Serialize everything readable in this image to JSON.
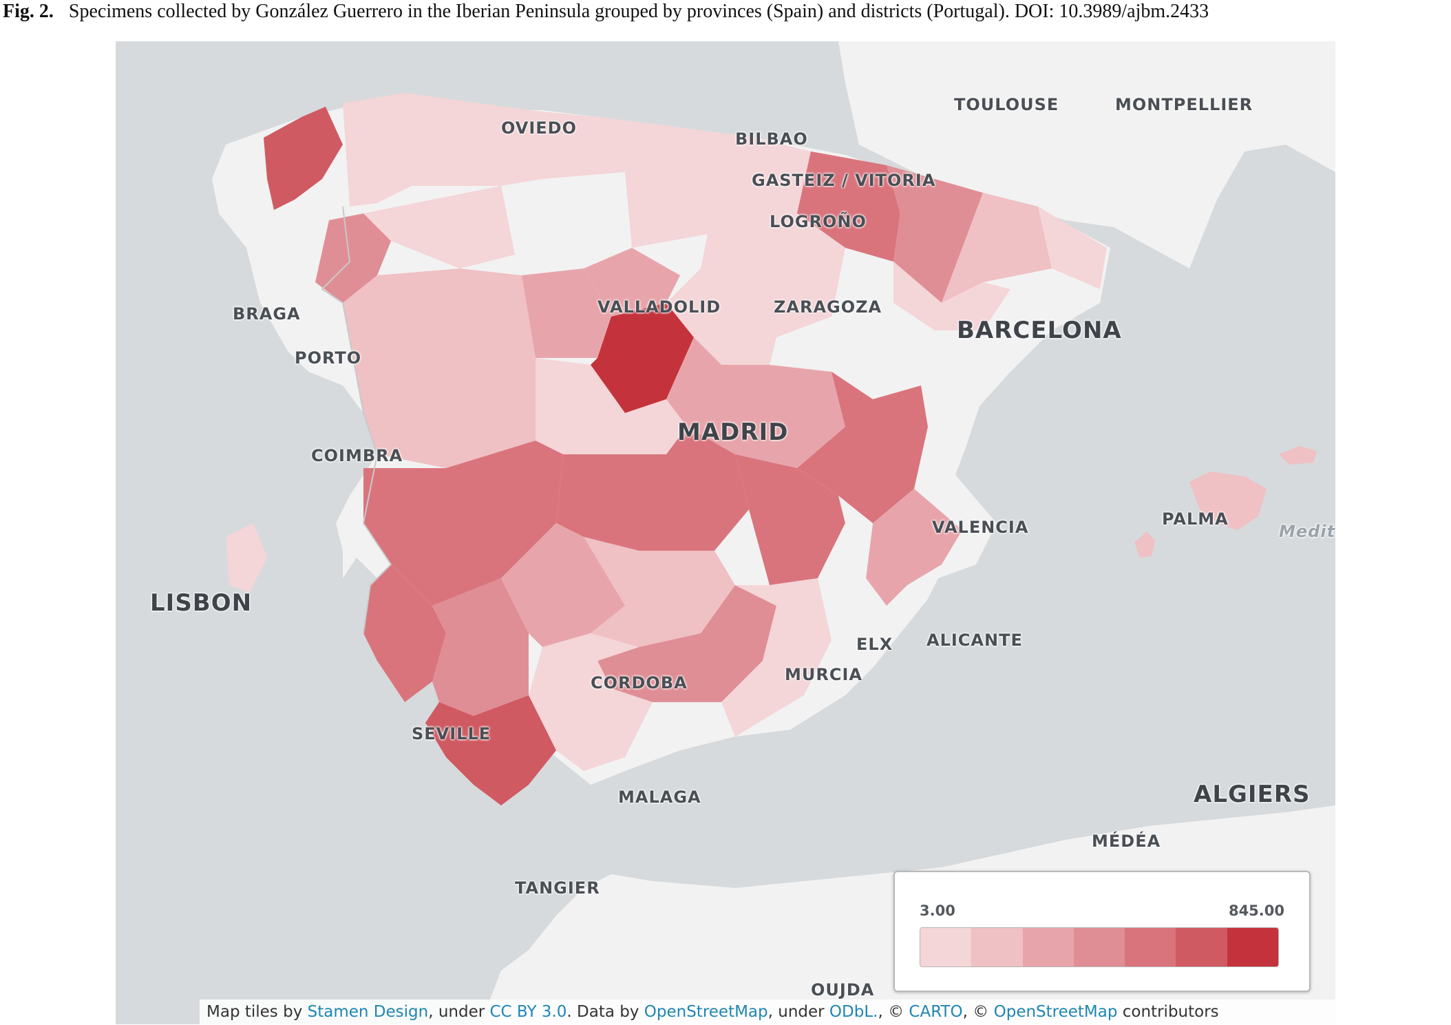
{
  "caption": {
    "label": "Fig. 2.",
    "text": "Specimens collected by González Guerrero in the Iberian Peninsula grouped by provinces (Spain) and districts (Portugal). DOI: 10.3989/ajbm.2433"
  },
  "map": {
    "cities": [
      {
        "id": "oviedo",
        "name": "OVIEDO"
      },
      {
        "id": "bilbao",
        "name": "BILBAO"
      },
      {
        "id": "toulouse",
        "name": "TOULOUSE"
      },
      {
        "id": "montpellier",
        "name": "MONTPELLIER"
      },
      {
        "id": "vitoria",
        "name": "GASTEIZ / VITORIA"
      },
      {
        "id": "logrono",
        "name": "LOGROÑO"
      },
      {
        "id": "braga",
        "name": "BRAGA"
      },
      {
        "id": "valladolid",
        "name": "VALLADOLID"
      },
      {
        "id": "zaragoza",
        "name": "ZARAGOZA"
      },
      {
        "id": "barcelona",
        "name": "BARCELONA"
      },
      {
        "id": "porto",
        "name": "PORTO"
      },
      {
        "id": "madrid",
        "name": "MADRID"
      },
      {
        "id": "coimbra",
        "name": "COIMBRA"
      },
      {
        "id": "valencia",
        "name": "VALENCIA"
      },
      {
        "id": "palma",
        "name": "PALMA"
      },
      {
        "id": "medit",
        "name": "Medit"
      },
      {
        "id": "lisbon",
        "name": "LISBON"
      },
      {
        "id": "elx",
        "name": "ELX"
      },
      {
        "id": "alicante",
        "name": "ALICANTE"
      },
      {
        "id": "cordoba",
        "name": "CORDOBA"
      },
      {
        "id": "murcia",
        "name": "MURCIA"
      },
      {
        "id": "seville",
        "name": "SEVILLE"
      },
      {
        "id": "malaga",
        "name": "MALAGA"
      },
      {
        "id": "algiers",
        "name": "ALGIERS"
      },
      {
        "id": "medea",
        "name": "MÉDÉA"
      },
      {
        "id": "tangier",
        "name": "TANGIER"
      },
      {
        "id": "oujda",
        "name": "OUJDA"
      }
    ],
    "colors": {
      "sea": "#d7dadc",
      "land": "#f2f2f2",
      "class1": "#f4d5d8",
      "class2": "#efc0c4",
      "class3": "#e7a5ab",
      "class4": "#e08e95",
      "class5": "#d9747d",
      "class6": "#d05a62",
      "class7": "#c4333b"
    }
  },
  "legend": {
    "min": "3.00",
    "max": "845.00",
    "colors": [
      "#f4d5d8",
      "#efc0c4",
      "#e7a5ab",
      "#e08e95",
      "#d9747d",
      "#d05a62",
      "#c4333b"
    ]
  },
  "attribution": {
    "p1": "Map tiles by ",
    "l1": "Stamen Design",
    "p2": ", under ",
    "l2": "CC BY 3.0",
    "p3": ". Data by ",
    "l3": "OpenStreetMap",
    "p4": ", under ",
    "l4": "ODbL.",
    "p5": ", © ",
    "l5": "CARTO",
    "p6": ", © ",
    "l6": "OpenStreetMap",
    "p7": " contributors"
  }
}
